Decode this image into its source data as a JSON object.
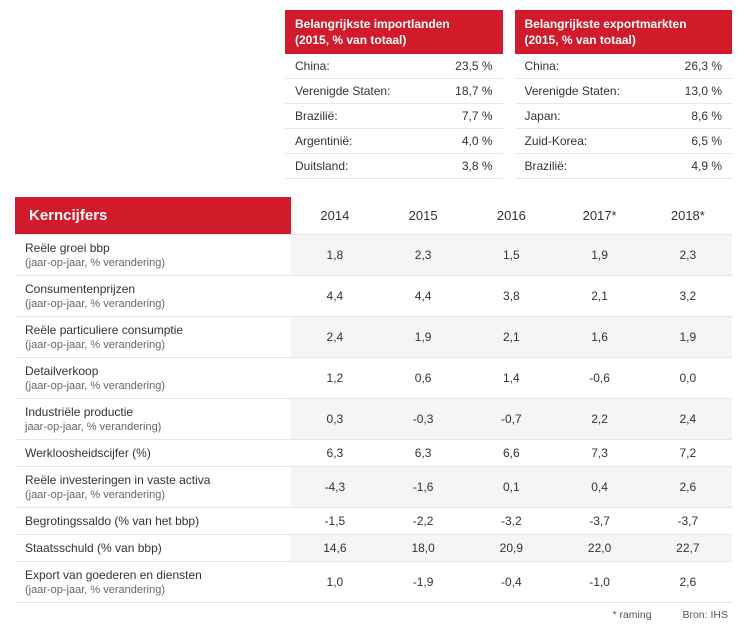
{
  "colors": {
    "accent": "#d11a2a",
    "row_stripe": "#f5f5f5",
    "border": "#e6e6e6",
    "text": "#333333",
    "subtext": "#666666"
  },
  "imports": {
    "title_line1": "Belangrijkste importlanden",
    "title_line2": "(2015, % van totaal)",
    "rows": [
      {
        "country": "China:",
        "value": "23,5 %"
      },
      {
        "country": "Verenigde Staten:",
        "value": "18,7 %"
      },
      {
        "country": "Brazilië:",
        "value": "7,7 %"
      },
      {
        "country": "Argentinië:",
        "value": "4,0 %"
      },
      {
        "country": "Duitsland:",
        "value": "3,8 %"
      }
    ]
  },
  "exports": {
    "title_line1": "Belangrijkste exportmarkten",
    "title_line2": "(2015, % van totaal)",
    "rows": [
      {
        "country": "China:",
        "value": "26,3 %"
      },
      {
        "country": "Verenigde Staten:",
        "value": "13,0 %"
      },
      {
        "country": "Japan:",
        "value": "8,6 %"
      },
      {
        "country": "Zuid-Korea:",
        "value": "6,5 %"
      },
      {
        "country": "Brazilië:",
        "value": "4,9 %"
      }
    ]
  },
  "main": {
    "header": "Kerncijfers",
    "years": [
      "2014",
      "2015",
      "2016",
      "2017*",
      "2018*"
    ],
    "rows": [
      {
        "label": "Reële groei bbp",
        "sub": "(jaar-op-jaar, % verandering)",
        "v": [
          "1,8",
          "2,3",
          "1,5",
          "1,9",
          "2,3"
        ]
      },
      {
        "label": "Consumentenprijzen",
        "sub": "(jaar-op-jaar, % verandering)",
        "v": [
          "4,4",
          "4,4",
          "3,8",
          "2,1",
          "3,2"
        ]
      },
      {
        "label": "Reële particuliere consumptie",
        "sub": "(jaar-op-jaar, % verandering)",
        "v": [
          "2,4",
          "1,9",
          "2,1",
          "1,6",
          "1,9"
        ]
      },
      {
        "label": "Detailverkoop",
        "sub": "(jaar-op-jaar, % verandering)",
        "v": [
          "1,2",
          "0,6",
          "1,4",
          "-0,6",
          "0,0"
        ]
      },
      {
        "label": "Industriële productie",
        "sub": "jaar-op-jaar, % verandering)",
        "v": [
          "0,3",
          "-0,3",
          "-0,7",
          "2,2",
          "2,4"
        ]
      },
      {
        "label": "Werkloosheidscijfer (%)",
        "sub": "",
        "v": [
          "6,3",
          "6,3",
          "6,6",
          "7,3",
          "7,2"
        ]
      },
      {
        "label": "Reële investeringen in vaste activa",
        "sub": "(jaar-op-jaar, % verandering)",
        "v": [
          "-4,3",
          "-1,6",
          "0,1",
          "0,4",
          "2,6"
        ]
      },
      {
        "label": "Begrotingssaldo (% van het bbp)",
        "sub": "",
        "v": [
          "-1,5",
          "-2,2",
          "-3,2",
          "-3,7",
          "-3,7"
        ]
      },
      {
        "label": "Staatsschuld (% van bbp)",
        "sub": "",
        "v": [
          "14,6",
          "18,0",
          "20,9",
          "22,0",
          "22,7"
        ]
      },
      {
        "label": "Export van goederen en diensten",
        "sub": "(jaar-op-jaar, % verandering)",
        "v": [
          "1,0",
          "-1,9",
          "-0,4",
          "-1,0",
          "2,6"
        ]
      }
    ]
  },
  "footnote": {
    "left": "* raming",
    "right": "Bron: IHS"
  }
}
